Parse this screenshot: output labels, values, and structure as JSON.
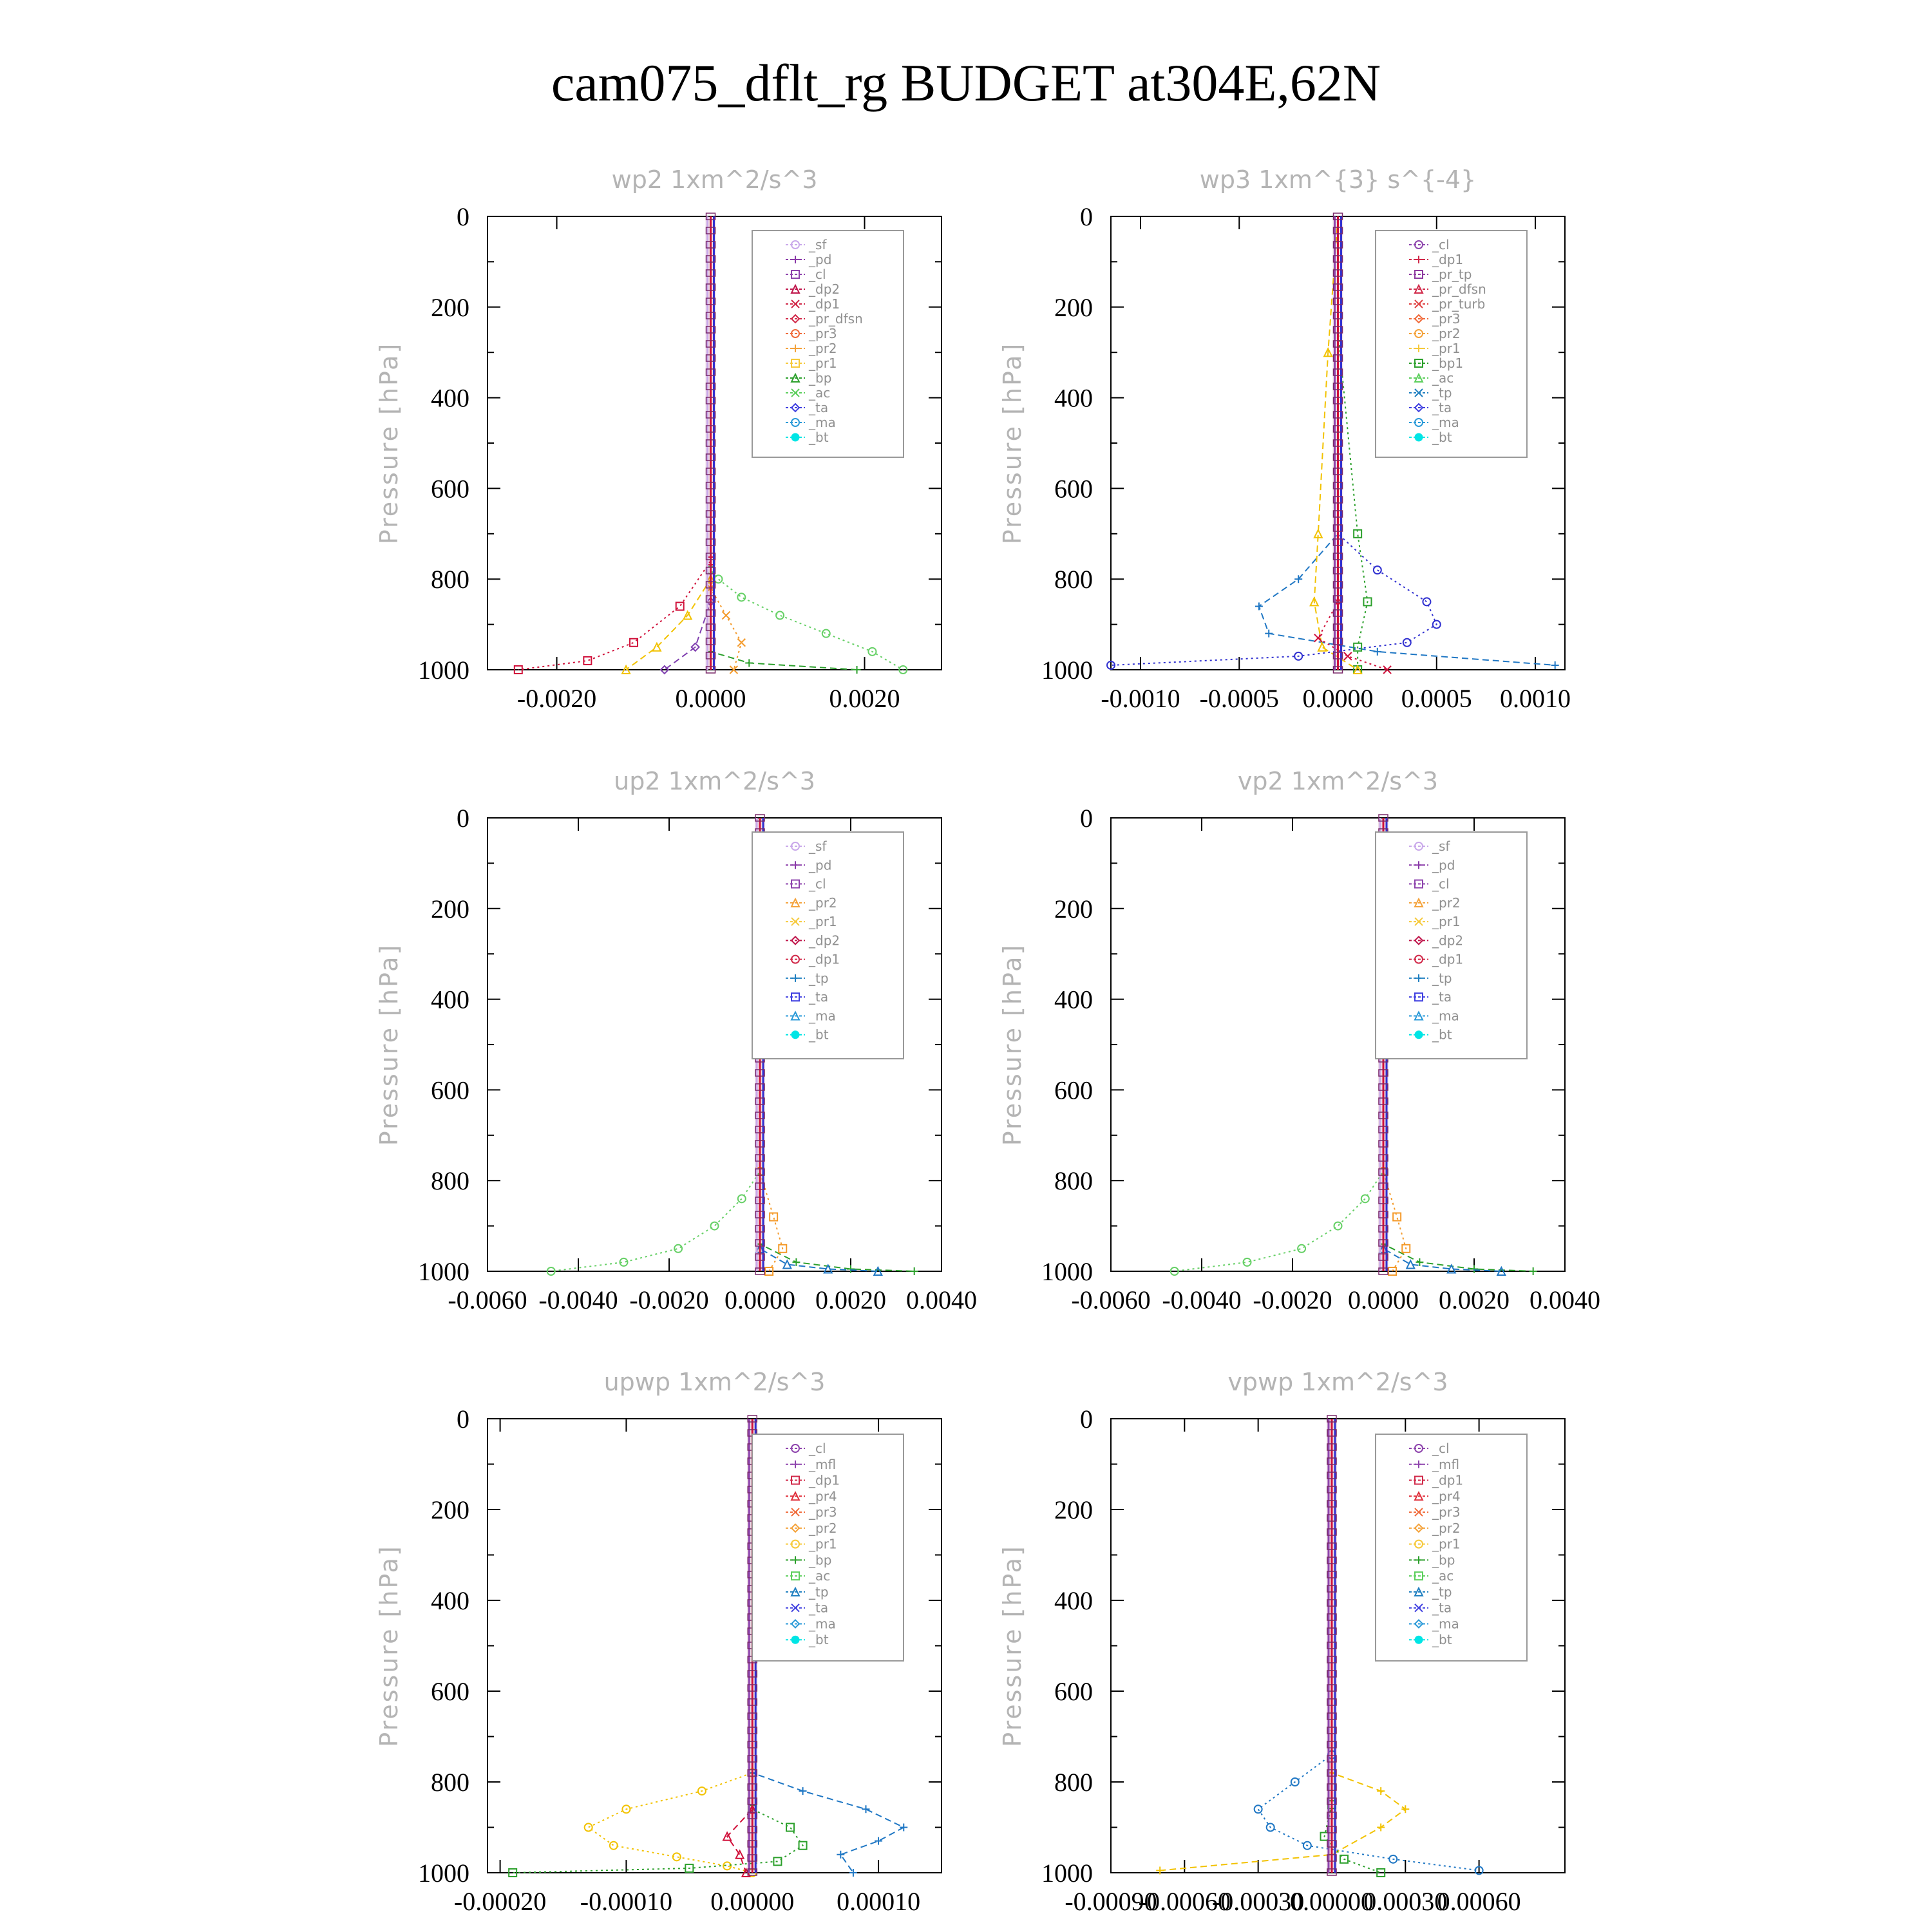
{
  "title": "cam075_dflt_rg  BUDGET at304E,62N",
  "colors": {
    "sf": "#c9a8ea",
    "pd": "#8a3aa8",
    "cl": "#8e44ad",
    "mfl": "#8e44ad",
    "dp2": "#c0174c",
    "dp1": "#d12a4a",
    "pr4": "#e0303c",
    "pr_tp": "#8e3aa0",
    "pr_dfsn": "#d12a4a",
    "pr_turb": "#e04444",
    "pr3": "#f06a3a",
    "pr2": "#f4a23a",
    "pr1": "#f6c93a",
    "bp": "#2ca02c",
    "bp1": "#2ca02c",
    "ac": "#5ccf5c",
    "tp": "#1f7fc0",
    "ta": "#4040e0",
    "ma": "#2a9ad8",
    "bt": "#00e5e5",
    "red": "#d0103a",
    "green": "#2ca02c",
    "lightgreen": "#66d066",
    "yellow": "#f2c200",
    "orange": "#f49a2a",
    "blue": "#1f77c4",
    "navy": "#3030d0",
    "purple": "#8040b0"
  },
  "chart_data": [
    {
      "id": "wp2",
      "type": "line",
      "title": "wp2  1xm^2/s^3",
      "ylabel": "Pressure [hPa]",
      "ylim": [
        0,
        1000
      ],
      "xlim": [
        -0.0029,
        0.003
      ],
      "yticks": [
        "0",
        "200",
        "400",
        "600",
        "800",
        "1000"
      ],
      "xticks": [
        {
          "v": -0.002,
          "label": "-0.0020"
        },
        {
          "v": 0.0,
          "label": "0.0000"
        },
        {
          "v": 0.002,
          "label": "0.0020"
        }
      ],
      "legend": [
        "_sf",
        "_pd",
        "_cl",
        "_dp2",
        "_dp1",
        "_pr_dfsn",
        "_pr3",
        "_pr2",
        "_pr1",
        "_bp",
        "_ac",
        "_ta",
        "_ma",
        "_bt"
      ],
      "legend_keys": [
        "sf",
        "pd",
        "cl",
        "dp2",
        "dp1",
        "pr_dfsn",
        "pr3",
        "pr2",
        "pr1",
        "bp",
        "ac",
        "ta",
        "ma",
        "bt"
      ],
      "profiles": [
        {
          "c": "lightgreen",
          "x": [
            0,
            0,
            0.0001,
            0.0004,
            0.0009,
            0.0015,
            0.0021,
            0.0025
          ],
          "y": [
            0,
            780,
            800,
            840,
            880,
            920,
            960,
            1000
          ]
        },
        {
          "c": "green",
          "x": [
            0,
            0,
            0.0005,
            0.0019
          ],
          "y": [
            0,
            960,
            985,
            1000
          ]
        },
        {
          "c": "red",
          "x": [
            0,
            0,
            -0.0004,
            -0.001,
            -0.0016,
            -0.0025
          ],
          "y": [
            0,
            760,
            860,
            940,
            980,
            1000
          ]
        },
        {
          "c": "yellow",
          "x": [
            0,
            0,
            -0.0003,
            -0.0007,
            -0.0011
          ],
          "y": [
            0,
            800,
            880,
            950,
            1000
          ]
        },
        {
          "c": "orange",
          "x": [
            0,
            0,
            0.0002,
            0.0004,
            0.0003
          ],
          "y": [
            0,
            820,
            880,
            940,
            1000
          ]
        },
        {
          "c": "purple",
          "x": [
            0,
            0,
            -0.0002,
            -0.0006
          ],
          "y": [
            0,
            850,
            950,
            1000
          ]
        }
      ]
    },
    {
      "id": "wp3",
      "type": "line",
      "title": "wp3  1xm^{3} s^{-4}",
      "ylabel": "Pressure [hPa]",
      "ylim": [
        0,
        1000
      ],
      "xlim": [
        -0.00115,
        0.00115
      ],
      "yticks": [
        "0",
        "200",
        "400",
        "600",
        "800",
        "1000"
      ],
      "xticks": [
        {
          "v": -0.001,
          "label": "-0.0010"
        },
        {
          "v": -0.0005,
          "label": "-0.0005"
        },
        {
          "v": 0.0,
          "label": "0.0000"
        },
        {
          "v": 0.0005,
          "label": "0.0005"
        },
        {
          "v": 0.001,
          "label": "0.0010"
        }
      ],
      "legend": [
        "_cl",
        "_dp1",
        "_pr_tp",
        "_pr_dfsn",
        "_pr_turb",
        "_pr3",
        "_pr2",
        "_pr1",
        "_bp1",
        "_ac",
        "_tp",
        "_ta",
        "_ma",
        "_bt"
      ],
      "legend_keys": [
        "cl",
        "dp1",
        "pr_tp",
        "pr_dfsn",
        "pr_turb",
        "pr3",
        "pr2",
        "pr1",
        "bp1",
        "ac",
        "tp",
        "ta",
        "ma",
        "bt"
      ],
      "profiles": [
        {
          "c": "navy",
          "x": [
            0,
            0,
            0.0002,
            0.00045,
            0.0005,
            0.00035,
            -0.0002,
            -0.00115
          ],
          "y": [
            0,
            700,
            780,
            850,
            900,
            940,
            970,
            990
          ]
        },
        {
          "c": "blue",
          "x": [
            0,
            0,
            -0.0002,
            -0.0004,
            -0.00035,
            0.0002,
            0.0011
          ],
          "y": [
            0,
            700,
            800,
            860,
            920,
            960,
            990
          ]
        },
        {
          "c": "green",
          "x": [
            0,
            0,
            0.0001,
            0.00015,
            0.0001,
            0.0001
          ],
          "y": [
            0,
            250,
            700,
            850,
            950,
            1000
          ]
        },
        {
          "c": "yellow",
          "x": [
            0,
            -5e-05,
            -0.0001,
            -0.00012,
            -8e-05,
            0.0001
          ],
          "y": [
            0,
            300,
            700,
            850,
            950,
            1000
          ]
        },
        {
          "c": "red",
          "x": [
            0,
            0,
            -0.0001,
            5e-05,
            0.00025
          ],
          "y": [
            0,
            850,
            930,
            970,
            1000
          ]
        }
      ]
    },
    {
      "id": "up2",
      "type": "line",
      "title": "up2  1xm^2/s^3",
      "ylabel": "Pressure [hPa]",
      "ylim": [
        0,
        1000
      ],
      "xlim": [
        -0.006,
        0.004
      ],
      "yticks": [
        "0",
        "200",
        "400",
        "600",
        "800",
        "1000"
      ],
      "xticks": [
        {
          "v": -0.006,
          "label": "-0.0060"
        },
        {
          "v": -0.004,
          "label": "-0.0040"
        },
        {
          "v": -0.002,
          "label": "-0.0020"
        },
        {
          "v": 0.0,
          "label": "0.0000"
        },
        {
          "v": 0.002,
          "label": "0.0020"
        },
        {
          "v": 0.004,
          "label": "0.0040"
        }
      ],
      "legend": [
        "_sf",
        "_pd",
        "_cl",
        "_pr2",
        "_pr1",
        "_dp2",
        "_dp1",
        "_tp",
        "_ta",
        "_ma",
        "_bt"
      ],
      "legend_keys": [
        "sf",
        "pd",
        "cl",
        "pr2",
        "pr1",
        "dp2",
        "dp1",
        "tp",
        "ta",
        "ma",
        "bt"
      ],
      "profiles": [
        {
          "c": "lightgreen",
          "x": [
            0,
            0,
            -0.0004,
            -0.001,
            -0.0018,
            -0.003,
            -0.0046
          ],
          "y": [
            0,
            780,
            840,
            900,
            950,
            980,
            1000
          ]
        },
        {
          "c": "green",
          "x": [
            0,
            0,
            0.0008,
            0.002,
            0.0034
          ],
          "y": [
            0,
            940,
            980,
            995,
            1000
          ]
        },
        {
          "c": "orange",
          "x": [
            0,
            0,
            0.0003,
            0.0005,
            0.0002
          ],
          "y": [
            0,
            780,
            880,
            950,
            1000
          ]
        },
        {
          "c": "blue",
          "x": [
            0,
            0,
            0.0006,
            0.0015,
            0.0026
          ],
          "y": [
            0,
            950,
            985,
            995,
            1000
          ]
        }
      ]
    },
    {
      "id": "vp2",
      "type": "line",
      "title": "vp2  1xm^2/s^3",
      "ylabel": "Pressure [hPa]",
      "ylim": [
        0,
        1000
      ],
      "xlim": [
        -0.006,
        0.004
      ],
      "yticks": [
        "0",
        "200",
        "400",
        "600",
        "800",
        "1000"
      ],
      "xticks": [
        {
          "v": -0.006,
          "label": "-0.0060"
        },
        {
          "v": -0.004,
          "label": "-0.0040"
        },
        {
          "v": -0.002,
          "label": "-0.0020"
        },
        {
          "v": 0.0,
          "label": "0.0000"
        },
        {
          "v": 0.002,
          "label": "0.0020"
        },
        {
          "v": 0.004,
          "label": "0.0040"
        }
      ],
      "legend": [
        "_sf",
        "_pd",
        "_cl",
        "_pr2",
        "_pr1",
        "_dp2",
        "_dp1",
        "_tp",
        "_ta",
        "_ma",
        "_bt"
      ],
      "legend_keys": [
        "sf",
        "pd",
        "cl",
        "pr2",
        "pr1",
        "dp2",
        "dp1",
        "tp",
        "ta",
        "ma",
        "bt"
      ],
      "profiles": [
        {
          "c": "lightgreen",
          "x": [
            0,
            0,
            -0.0004,
            -0.001,
            -0.0018,
            -0.003,
            -0.0046
          ],
          "y": [
            0,
            780,
            840,
            900,
            950,
            980,
            1000
          ]
        },
        {
          "c": "green",
          "x": [
            0,
            0,
            0.0008,
            0.002,
            0.0033
          ],
          "y": [
            0,
            940,
            980,
            995,
            1000
          ]
        },
        {
          "c": "orange",
          "x": [
            0,
            0,
            0.0003,
            0.0005,
            0.0002
          ],
          "y": [
            0,
            780,
            880,
            950,
            1000
          ]
        },
        {
          "c": "blue",
          "x": [
            0,
            0,
            0.0006,
            0.0015,
            0.0026
          ],
          "y": [
            0,
            950,
            985,
            995,
            1000
          ]
        }
      ]
    },
    {
      "id": "upwp",
      "type": "line",
      "title": "upwp  1xm^2/s^3",
      "ylabel": "Pressure [hPa]",
      "ylim": [
        0,
        1000
      ],
      "xlim": [
        -0.00021,
        0.00015
      ],
      "yticks": [
        "0",
        "200",
        "400",
        "600",
        "800",
        "1000"
      ],
      "xticks": [
        {
          "v": -0.0002,
          "label": "-0.00020"
        },
        {
          "v": -0.0001,
          "label": "-0.00010"
        },
        {
          "v": 0.0,
          "label": "0.00000"
        },
        {
          "v": 0.0001,
          "label": "0.00010"
        }
      ],
      "legend": [
        "_cl",
        "_mfl",
        "_dp1",
        "_pr4",
        "_pr3",
        "_pr2",
        "_pr1",
        "_bp",
        "_ac",
        "_tp",
        "_ta",
        "_ma",
        "_bt"
      ],
      "legend_keys": [
        "cl",
        "mfl",
        "dp1",
        "pr4",
        "pr3",
        "pr2",
        "pr1",
        "bp",
        "ac",
        "tp",
        "ta",
        "ma",
        "bt"
      ],
      "profiles": [
        {
          "c": "yellow",
          "x": [
            0,
            0,
            -4e-05,
            -0.0001,
            -0.00013,
            -0.00011,
            -6e-05,
            -2e-05,
            0
          ],
          "y": [
            0,
            780,
            820,
            860,
            900,
            940,
            965,
            985,
            1000
          ]
        },
        {
          "c": "blue",
          "x": [
            0,
            0,
            4e-05,
            9e-05,
            0.00012,
            0.0001,
            7e-05,
            8e-05
          ],
          "y": [
            0,
            780,
            820,
            860,
            900,
            930,
            960,
            1000
          ]
        },
        {
          "c": "green",
          "x": [
            0,
            0,
            3e-05,
            4e-05,
            2e-05,
            -5e-05,
            -0.00019
          ],
          "y": [
            0,
            860,
            900,
            940,
            975,
            990,
            1000
          ]
        },
        {
          "c": "red",
          "x": [
            0,
            0,
            -2e-05,
            -1e-05,
            -5e-06
          ],
          "y": [
            0,
            860,
            920,
            960,
            1000
          ]
        }
      ]
    },
    {
      "id": "vpwp",
      "type": "line",
      "title": "vpwp  1xm^2/s^3",
      "ylabel": "Pressure [hPa]",
      "ylim": [
        0,
        1000
      ],
      "xlim": [
        -0.0009,
        0.00095
      ],
      "yticks": [
        "0",
        "200",
        "400",
        "600",
        "800",
        "1000"
      ],
      "xticks": [
        {
          "v": -0.0009,
          "label": "-0.00090"
        },
        {
          "v": -0.0006,
          "label": "-0.00060"
        },
        {
          "v": -0.0003,
          "label": "-0.00030"
        },
        {
          "v": 0.0,
          "label": "0.00000"
        },
        {
          "v": 0.0003,
          "label": "0.00030"
        },
        {
          "v": 0.0006,
          "label": "0.00060"
        }
      ],
      "legend": [
        "_cl",
        "_mfl",
        "_dp1",
        "_pr4",
        "_pr3",
        "_pr2",
        "_pr1",
        "_bp",
        "_ac",
        "_tp",
        "_ta",
        "_ma",
        "_bt"
      ],
      "legend_keys": [
        "cl",
        "mfl",
        "dp1",
        "pr4",
        "pr3",
        "pr2",
        "pr1",
        "bp",
        "ac",
        "tp",
        "ta",
        "ma",
        "bt"
      ],
      "profiles": [
        {
          "c": "blue",
          "x": [
            0,
            0,
            -0.00015,
            -0.0003,
            -0.00025,
            -0.0001,
            0.00025,
            0.0006
          ],
          "y": [
            0,
            740,
            800,
            860,
            900,
            940,
            970,
            995
          ]
        },
        {
          "c": "yellow",
          "x": [
            0,
            0,
            0.0002,
            0.0003,
            0.0002,
            0,
            -0.0007
          ],
          "y": [
            0,
            780,
            820,
            860,
            900,
            960,
            995
          ]
        },
        {
          "c": "green",
          "x": [
            0,
            0,
            -3e-05,
            5e-05,
            0.0002
          ],
          "y": [
            0,
            850,
            920,
            970,
            1000
          ]
        }
      ]
    }
  ]
}
